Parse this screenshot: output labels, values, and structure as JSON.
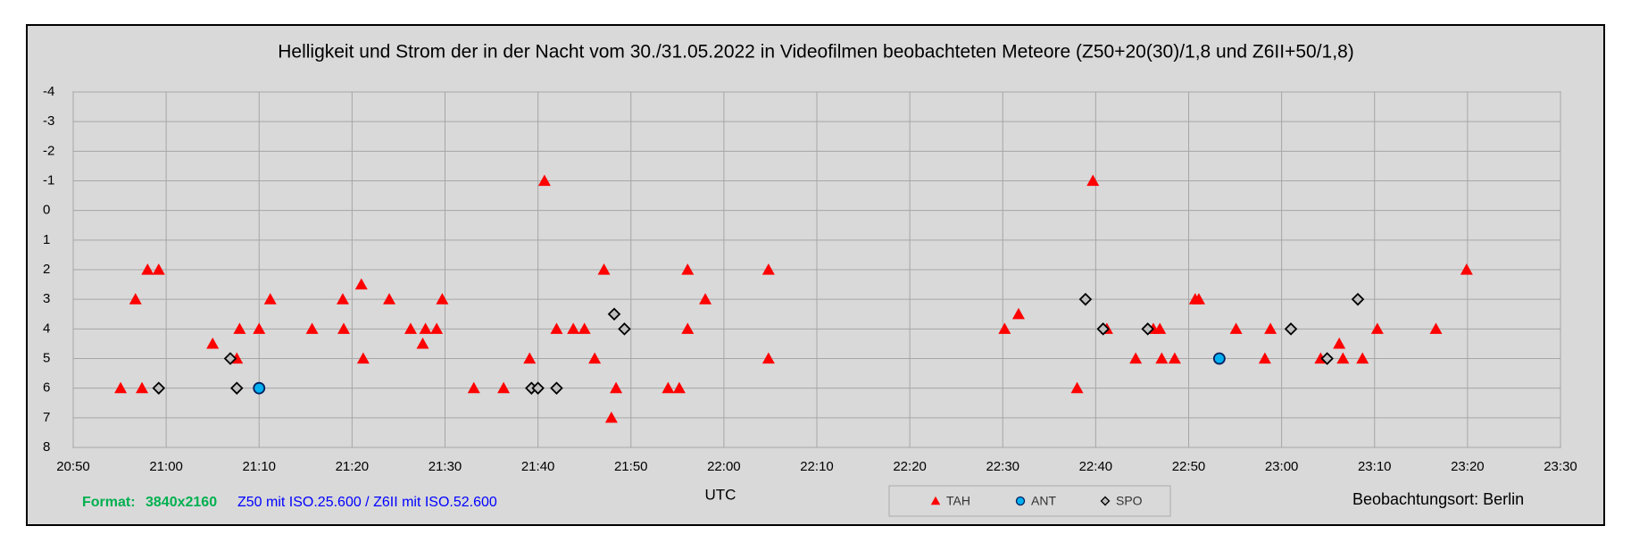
{
  "chart_data": {
    "type": "scatter",
    "title": "Helligkeit und Strom der in der Nacht vom 30./31.05.2022 in Videofilmen beobachteten Meteore  (Z50+20(30)/1,8 und Z6II+50/1,8)",
    "x_label": "UTC",
    "annotations": {
      "format_label": "Format:",
      "format_value": "3840x2160",
      "camera_note": "Z50 mit ISO.25.600 / Z6II mit ISO.52.600",
      "location": "Beobachtungsort: Berlin"
    },
    "xlim": [
      1250,
      1410
    ],
    "xticks": [
      {
        "value": 1250,
        "label": "20:50"
      },
      {
        "value": 1260,
        "label": "21:00"
      },
      {
        "value": 1270,
        "label": "21:10"
      },
      {
        "value": 1280,
        "label": "21:20"
      },
      {
        "value": 1290,
        "label": "21:30"
      },
      {
        "value": 1300,
        "label": "21:40"
      },
      {
        "value": 1310,
        "label": "21:50"
      },
      {
        "value": 1320,
        "label": "22:00"
      },
      {
        "value": 1330,
        "label": "22:10"
      },
      {
        "value": 1340,
        "label": "22:20"
      },
      {
        "value": 1350,
        "label": "22:30"
      },
      {
        "value": 1360,
        "label": "22:40"
      },
      {
        "value": 1370,
        "label": "22:50"
      },
      {
        "value": 1380,
        "label": "23:00"
      },
      {
        "value": 1390,
        "label": "23:10"
      },
      {
        "value": 1400,
        "label": "23:20"
      },
      {
        "value": 1410,
        "label": "23:30"
      }
    ],
    "ylim": [
      -4,
      8
    ],
    "y_inverted": true,
    "yticks": [
      -4,
      -3,
      -2,
      -1,
      0,
      1,
      2,
      3,
      4,
      5,
      6,
      7,
      8
    ],
    "grid": true,
    "legend": "bottom",
    "series": [
      {
        "name": "TAH",
        "color": "#ff0000",
        "marker": "triangle",
        "x": [
          1255.1,
          1256.7,
          1257.4,
          1258,
          1259.2,
          1265,
          1267.6,
          1267.9,
          1270,
          1271.2,
          1275.7,
          1279,
          1279.1,
          1281,
          1281.2,
          1284,
          1286.3,
          1287.6,
          1287.9,
          1289.1,
          1289.7,
          1293.1,
          1296.3,
          1299.1,
          1300.7,
          1302,
          1303.8,
          1305,
          1306.1,
          1307.1,
          1307.9,
          1308.4,
          1314,
          1315.2,
          1316.1,
          1316.1,
          1318,
          1324.8,
          1324.8,
          1350.2,
          1351.7,
          1358,
          1359.7,
          1361.2,
          1364.3,
          1366.2,
          1366.9,
          1367.1,
          1368.5,
          1370.7,
          1371.1,
          1375.1,
          1378.2,
          1378.8,
          1384.2,
          1386.2,
          1386.6,
          1388.7,
          1390.3,
          1396.6,
          1399.9
        ],
        "values": [
          6,
          3,
          6,
          2,
          2,
          4.5,
          5,
          4,
          4,
          3,
          4,
          3,
          4,
          2.5,
          5,
          3,
          4,
          4.5,
          4,
          4,
          3,
          6,
          6,
          5,
          -1,
          4,
          4,
          4,
          5,
          2,
          7,
          6,
          6,
          6,
          2,
          4,
          3,
          2,
          5,
          4,
          3.5,
          6,
          -1,
          4,
          5,
          4,
          4,
          5,
          5,
          3,
          3,
          4,
          5,
          4,
          5,
          4.5,
          5,
          5,
          4,
          4,
          2
        ]
      },
      {
        "name": "ANT",
        "color": "#00b0f0",
        "marker": "circle",
        "x": [
          1270,
          1373.3
        ],
        "values": [
          6,
          5
        ]
      },
      {
        "name": "SPO",
        "color": "#bfbfbf",
        "marker": "diamond",
        "x": [
          1259.2,
          1266.9,
          1267.6,
          1299.3,
          1300,
          1302,
          1308.2,
          1309.3,
          1358.9,
          1360.8,
          1365.6,
          1381,
          1384.9,
          1388.2
        ],
        "values": [
          6,
          5,
          6,
          6,
          6,
          6,
          3.5,
          4,
          3,
          4,
          4,
          4,
          5,
          3
        ]
      }
    ]
  }
}
